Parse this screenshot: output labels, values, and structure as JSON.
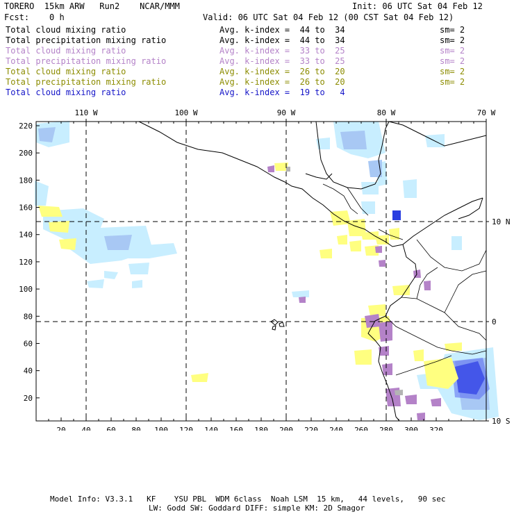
{
  "header": {
    "model": "TORERO  15km ARW   Run2    NCAR/MMM",
    "init": "Init: 06 UTC Sat 04 Feb 12",
    "fcst": "Fcst:    0 h",
    "valid": "Valid: 06 UTC Sat 04 Feb 12 (00 CST Sat 04 Feb 12)"
  },
  "legend": [
    {
      "label": "Total cloud mixing ratio",
      "avg": "Avg. k-index =  44 to  34",
      "sm": "sm= 2",
      "color": "#000000"
    },
    {
      "label": "Total precipitation mixing ratio",
      "avg": "Avg. k-index =  44 to  34",
      "sm": "sm= 2",
      "color": "#000000"
    },
    {
      "label": "Total cloud mixing ratio",
      "avg": "Avg. k-index =  33 to  25",
      "sm": "sm= 2",
      "color": "#b482c8"
    },
    {
      "label": "Total precipitation mixing ratio",
      "avg": "Avg. k-index =  33 to  25",
      "sm": "sm= 2",
      "color": "#b482c8"
    },
    {
      "label": "Total cloud mixing ratio",
      "avg": "Avg. k-index =  26 to  20",
      "sm": "sm= 2",
      "color": "#8c8c00"
    },
    {
      "label": "Total precipitation mixing ratio",
      "avg": "Avg. k-index =  26 to  20",
      "sm": "sm= 2",
      "color": "#8c8c00"
    },
    {
      "label": "Total cloud mixing ratio",
      "avg": "Avg. k-index =  19 to   4",
      "sm": "",
      "color": "#1414c8"
    }
  ],
  "map": {
    "lon_labels": [
      "110 W",
      "100 W",
      "90 W",
      "80 W",
      "70 W"
    ],
    "lat_labels": [
      "10 N",
      "0",
      "10 S"
    ],
    "x_ticks": [
      "20",
      "40",
      "60",
      "80",
      "100",
      "120",
      "140",
      "160",
      "180",
      "200",
      "220",
      "240",
      "260",
      "280",
      "300",
      "320"
    ],
    "y_ticks": [
      "220",
      "200",
      "180",
      "160",
      "140",
      "120",
      "100",
      "80",
      "60",
      "40",
      "20"
    ],
    "colors": {
      "light_blue": "#c8eeff",
      "mid_blue": "#8ab0f0",
      "dark_blue": "#2a3ee0",
      "yellow": "#ffff80",
      "purple": "#b482c8",
      "gray": "#b4b4b4"
    }
  },
  "footer": {
    "line1": "Model Info: V3.3.1   KF    YSU PBL  WDM 6class  Noah LSM  15 km,   44 levels,   90 sec",
    "line2": "LW: Godd SW: Goddard DIFF: simple KM: 2D Smagor"
  }
}
